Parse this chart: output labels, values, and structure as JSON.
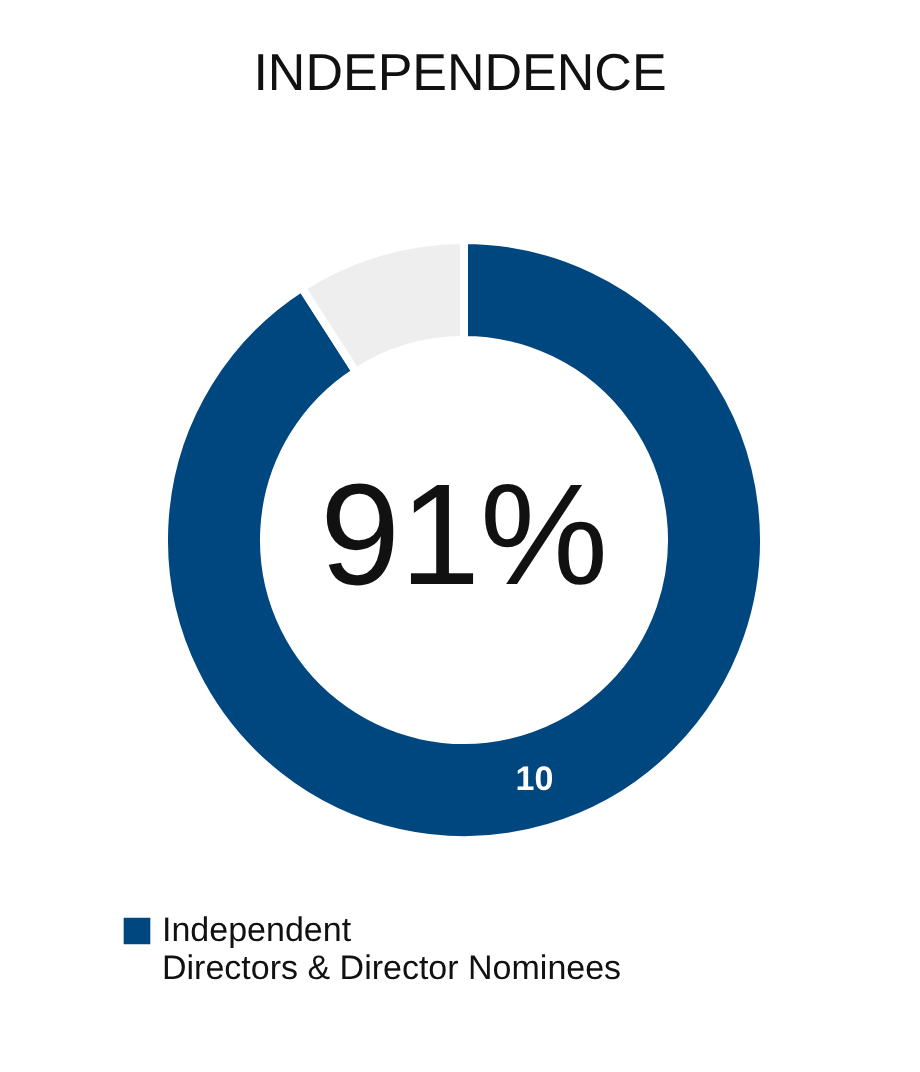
{
  "chart_data": {
    "type": "donut",
    "title": "INDEPENDENCE",
    "categories": [
      "Independent\nDirectors & Director Nominees",
      null
    ],
    "values": [
      10,
      1
    ],
    "colors": [
      "#00467f",
      "#eeeeee"
    ],
    "value_labels": [
      "10",
      null
    ],
    "annotations": [
      "91%"
    ],
    "legend": "bottom left"
  }
}
